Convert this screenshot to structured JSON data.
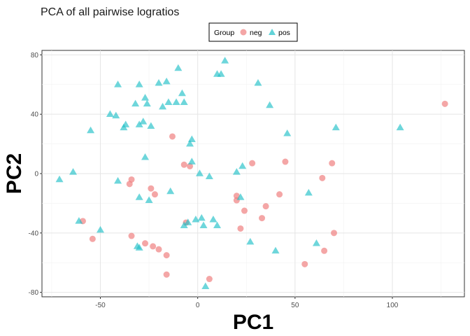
{
  "chart_data": {
    "type": "scatter",
    "title": "PCA of all pairwise logratios",
    "xlabel": "PC1",
    "ylabel": "PC2",
    "xlim": [
      -80,
      137
    ],
    "ylim": [
      -83,
      83
    ],
    "x_ticks": [
      -50,
      0,
      50,
      100
    ],
    "y_ticks": [
      -80,
      -40,
      0,
      40,
      80
    ],
    "grid": true,
    "legend_position": "top",
    "legend": {
      "title": "Group",
      "entries": [
        "neg",
        "pos"
      ]
    },
    "series": [
      {
        "name": "neg",
        "marker": "circle",
        "color": "#f08080",
        "points": [
          [
            127,
            47
          ],
          [
            -59,
            -32
          ],
          [
            -54,
            -44
          ],
          [
            -35,
            -7
          ],
          [
            -34,
            -4
          ],
          [
            -34,
            -42
          ],
          [
            -27,
            -47
          ],
          [
            -24,
            -10
          ],
          [
            -23,
            -49
          ],
          [
            -22,
            -14
          ],
          [
            -20,
            -51
          ],
          [
            -16,
            -55
          ],
          [
            -16,
            -68
          ],
          [
            -13,
            25
          ],
          [
            -7,
            6
          ],
          [
            -6,
            -33
          ],
          [
            6,
            -71
          ],
          [
            20,
            -15
          ],
          [
            20,
            -18
          ],
          [
            22,
            -37
          ],
          [
            24,
            -25
          ],
          [
            28,
            7
          ],
          [
            33,
            -30
          ],
          [
            35,
            -22
          ],
          [
            42,
            -14
          ],
          [
            45,
            8
          ],
          [
            55,
            -61
          ],
          [
            64,
            -3
          ],
          [
            65,
            -52
          ],
          [
            69,
            7
          ],
          [
            70,
            -40
          ],
          [
            -4,
            5
          ]
        ]
      },
      {
        "name": "pos",
        "marker": "triangle",
        "color": "#20c0c8",
        "points": [
          [
            -71,
            -4
          ],
          [
            -64,
            1
          ],
          [
            -61,
            -32
          ],
          [
            -50,
            -38
          ],
          [
            -55,
            29
          ],
          [
            -45,
            40
          ],
          [
            -42,
            39
          ],
          [
            -41,
            60
          ],
          [
            -41,
            -5
          ],
          [
            -38,
            31
          ],
          [
            -37,
            33
          ],
          [
            -32,
            47
          ],
          [
            -31,
            -49
          ],
          [
            -30,
            -50
          ],
          [
            -30,
            60
          ],
          [
            -30,
            33
          ],
          [
            -30,
            -16
          ],
          [
            -28,
            35
          ],
          [
            -27,
            51
          ],
          [
            -27,
            11
          ],
          [
            -26,
            47
          ],
          [
            -25,
            -18
          ],
          [
            -24,
            32
          ],
          [
            -20,
            61
          ],
          [
            -18,
            45
          ],
          [
            -16,
            62
          ],
          [
            -15,
            48
          ],
          [
            -14,
            -12
          ],
          [
            -11,
            48
          ],
          [
            -10,
            71
          ],
          [
            -8,
            54
          ],
          [
            -7,
            48
          ],
          [
            -7,
            -35
          ],
          [
            -5,
            -33
          ],
          [
            -4,
            20
          ],
          [
            -3,
            23
          ],
          [
            -3,
            8
          ],
          [
            -1,
            -31
          ],
          [
            1,
            0
          ],
          [
            2,
            -30
          ],
          [
            3,
            -35
          ],
          [
            4,
            -76
          ],
          [
            6,
            -2
          ],
          [
            8,
            -31
          ],
          [
            10,
            67
          ],
          [
            10,
            -35
          ],
          [
            12,
            67
          ],
          [
            14,
            76
          ],
          [
            20,
            1
          ],
          [
            22,
            -16
          ],
          [
            23,
            5
          ],
          [
            27,
            -46
          ],
          [
            31,
            61
          ],
          [
            37,
            46
          ],
          [
            40,
            -52
          ],
          [
            46,
            27
          ],
          [
            57,
            -13
          ],
          [
            61,
            -47
          ],
          [
            71,
            31
          ],
          [
            104,
            31
          ]
        ]
      }
    ]
  }
}
